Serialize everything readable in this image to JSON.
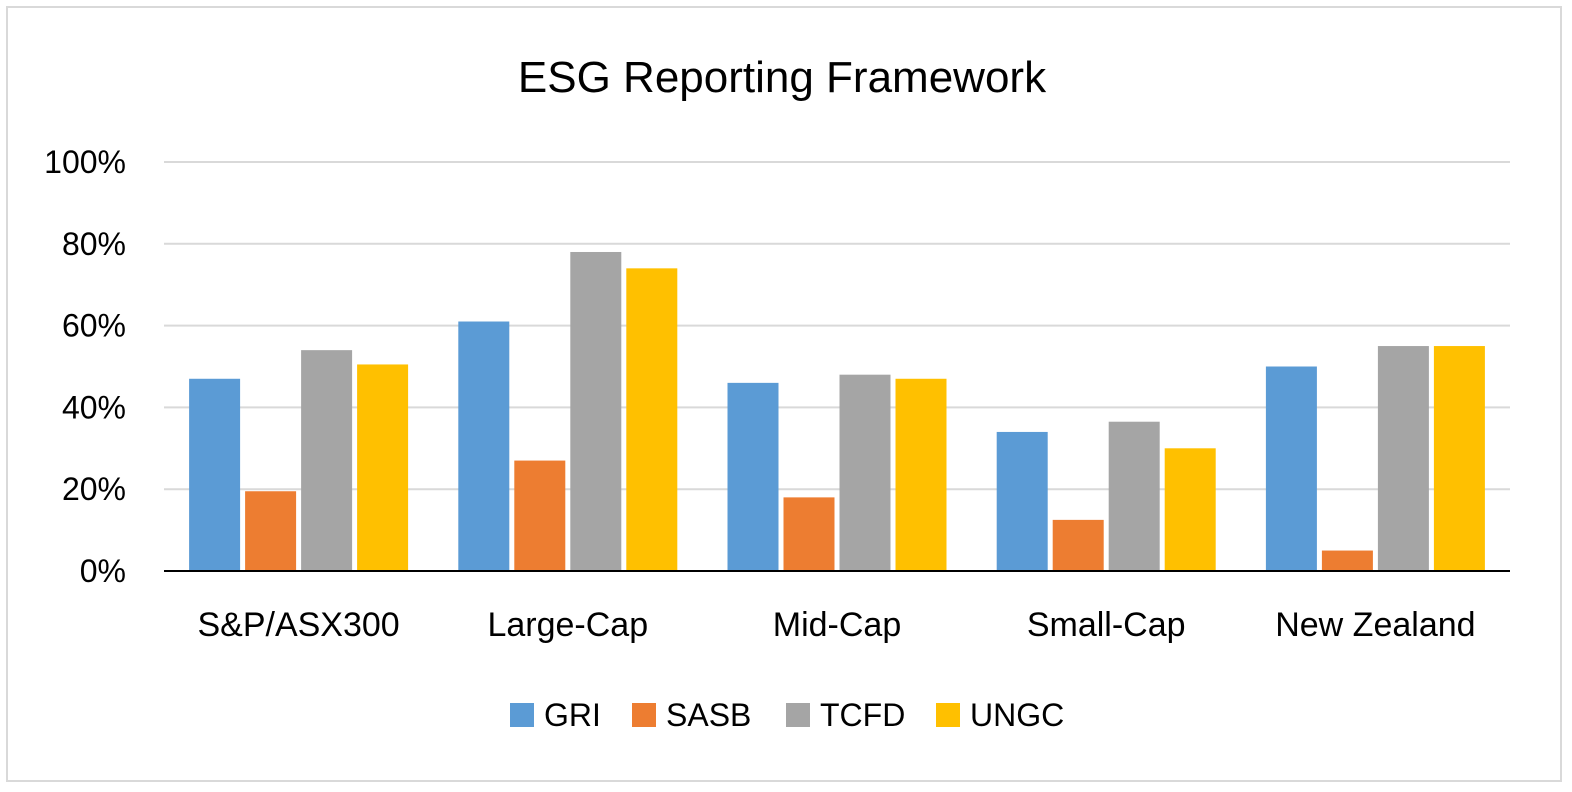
{
  "chart_data": {
    "type": "bar",
    "title": "ESG Reporting Framework",
    "xlabel": "",
    "ylabel": "",
    "categories": [
      "S&P/ASX300",
      "Large-Cap",
      "Mid-Cap",
      "Small-Cap",
      "New Zealand"
    ],
    "series": [
      {
        "name": "GRI",
        "color": "#5B9BD5",
        "values": [
          47,
          61,
          46,
          34,
          50
        ]
      },
      {
        "name": "SASB",
        "color": "#ED7D31",
        "values": [
          19.5,
          27,
          18,
          12.5,
          5
        ]
      },
      {
        "name": "TCFD",
        "color": "#A5A5A5",
        "values": [
          54,
          78,
          48,
          36.5,
          55
        ]
      },
      {
        "name": "UNGC",
        "color": "#FFC000",
        "values": [
          50.5,
          74,
          47,
          30,
          55
        ]
      }
    ],
    "ylim": [
      0,
      100
    ],
    "yticks": [
      0,
      20,
      40,
      60,
      80,
      100
    ],
    "ytick_labels": [
      "0%",
      "20%",
      "40%",
      "60%",
      "80%",
      "100%"
    ],
    "grid": true,
    "legend_position": "bottom"
  }
}
